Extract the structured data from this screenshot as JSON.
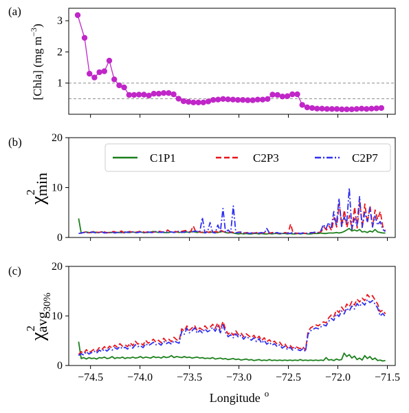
{
  "figure": {
    "xlabel": "Longitude",
    "xlabel_sup": "o",
    "x_ticks": [
      -74.5,
      -74.0,
      -73.5,
      -73.0,
      -72.5,
      -72.0,
      -71.5
    ],
    "x_tick_labels": [
      "−74.5",
      "−74.0",
      "−73.5",
      "−73.0",
      "−72.5",
      "−72.0",
      "−71.5"
    ],
    "xlim": [
      -74.72,
      -71.42
    ]
  },
  "chart_data": [
    {
      "type": "line",
      "panel": "(a)",
      "ylabel": "[Chla] (mg m",
      "ylabel_sup": "−3",
      "ylabel_close": ")",
      "ylim": [
        0,
        3.4
      ],
      "y_ticks": [
        1,
        2,
        3
      ],
      "reference_lines": [
        1.0,
        0.5
      ],
      "color": "#c026c8",
      "series": [
        {
          "x": [
            -74.63,
            -74.56,
            -74.51,
            -74.46,
            -74.41,
            -74.36,
            -74.31,
            -74.26,
            -74.21,
            -74.16,
            -74.11,
            -74.06,
            -74.01,
            -73.96,
            -73.91,
            -73.86,
            -73.81,
            -73.76,
            -73.71,
            -73.66,
            -73.61,
            -73.56,
            -73.51,
            -73.46,
            -73.41,
            -73.36,
            -73.31,
            -73.26,
            -73.21,
            -73.16,
            -73.11,
            -73.06,
            -73.01,
            -72.96,
            -72.91,
            -72.86,
            -72.81,
            -72.76,
            -72.71,
            -72.66,
            -72.61,
            -72.56,
            -72.51,
            -72.46,
            -72.41,
            -72.36,
            -72.31,
            -72.26,
            -72.21,
            -72.16,
            -72.11,
            -72.06,
            -72.01,
            -71.96,
            -71.91,
            -71.86,
            -71.81,
            -71.76,
            -71.71,
            -71.66,
            -71.61,
            -71.56
          ],
          "y": [
            3.18,
            2.45,
            1.3,
            1.18,
            1.35,
            1.38,
            1.72,
            1.12,
            0.93,
            0.86,
            0.62,
            0.62,
            0.63,
            0.63,
            0.6,
            0.66,
            0.66,
            0.68,
            0.68,
            0.64,
            0.5,
            0.42,
            0.4,
            0.38,
            0.38,
            0.38,
            0.41,
            0.46,
            0.47,
            0.49,
            0.48,
            0.47,
            0.46,
            0.46,
            0.45,
            0.45,
            0.47,
            0.47,
            0.49,
            0.63,
            0.62,
            0.57,
            0.58,
            0.64,
            0.64,
            0.3,
            0.22,
            0.2,
            0.18,
            0.18,
            0.17,
            0.17,
            0.17,
            0.16,
            0.16,
            0.16,
            0.17,
            0.18,
            0.17,
            0.18,
            0.19,
            0.2
          ]
        }
      ]
    },
    {
      "type": "line",
      "panel": "(b)",
      "ylabel_base": "χ",
      "ylabel_sup": "2",
      "ylabel_sub": "min",
      "ylim": [
        0,
        20
      ],
      "y_ticks": [
        0,
        10,
        20
      ],
      "legend": "top-right",
      "series": [
        {
          "name": "C1P1",
          "color": "#1a7f1a",
          "dash": "solid",
          "x_start": -74.62,
          "x_end": -71.52,
          "y": [
            3.8,
            0.9,
            1.0,
            1.1,
            1.0,
            1.0,
            1.1,
            1.0,
            1.0,
            1.1,
            1.0,
            1.0,
            1.0,
            1.0,
            1.1,
            1.0,
            1.0,
            1.0,
            1.1,
            1.0,
            1.0,
            1.1,
            1.0,
            1.0,
            1.1,
            1.0,
            1.0,
            1.0,
            1.1,
            1.2,
            1.1,
            1.0,
            1.1,
            1.0,
            1.0,
            1.0,
            1.1,
            1.0,
            1.1,
            1.0,
            1.1,
            1.0,
            1.1,
            1.0,
            1.2,
            1.1,
            1.0,
            1.1,
            1.0,
            1.0,
            1.1,
            1.0,
            1.1,
            1.0,
            1.0,
            1.1,
            1.2,
            1.0,
            0.9,
            1.0,
            0.9,
            0.8,
            0.7,
            0.8,
            0.7,
            0.8,
            0.7,
            0.7,
            0.8,
            0.8,
            0.7,
            0.8,
            0.7,
            0.7,
            0.8,
            0.7,
            0.8,
            0.8,
            0.7,
            0.8,
            0.8,
            0.7,
            0.8,
            0.7,
            0.7,
            0.8,
            0.7,
            0.8,
            0.8,
            0.7,
            0.7,
            0.8,
            0.8,
            0.8,
            0.9,
            0.8,
            0.8,
            0.9,
            0.9,
            0.9,
            1.0,
            0.9,
            1.0,
            1.2,
            1.5,
            1.8,
            1.3,
            1.5,
            1.3,
            1.6,
            1.1,
            1.2,
            1.0,
            1.3,
            1.1,
            1.6,
            1.1,
            1.0,
            0.9,
            0.9
          ]
        },
        {
          "name": "C2P3",
          "color": "#e8141c",
          "dash": "dashed",
          "x_start": -74.6,
          "x_end": -71.52,
          "y": [
            0.8,
            1.0,
            1.1,
            0.9,
            1.0,
            1.2,
            1.1,
            1.0,
            1.1,
            1.3,
            0.9,
            1.0,
            1.1,
            1.2,
            1.0,
            1.1,
            1.3,
            0.9,
            1.0,
            1.2,
            1.1,
            1.0,
            1.1,
            1.2,
            1.3,
            1.0,
            1.1,
            1.2,
            1.0,
            1.1,
            1.3,
            1.2,
            1.1,
            1.0,
            1.5,
            1.1,
            1.0,
            1.2,
            1.1,
            1.2,
            1.3,
            1.4,
            1.1,
            1.2,
            2.3,
            1.1,
            1.2,
            1.0,
            1.1,
            1.2,
            1.0,
            1.3,
            1.1,
            1.2,
            1.0,
            1.4,
            1.1,
            1.2,
            1.0,
            1.1,
            0.9,
            1.0,
            1.1,
            0.8,
            0.9,
            1.0,
            0.8,
            0.9,
            0.9,
            1.0,
            0.8,
            0.9,
            1.0,
            0.8,
            0.9,
            1.0,
            0.8,
            0.9,
            0.8,
            0.9,
            1.0,
            0.8,
            2.7,
            0.8,
            0.9,
            0.8,
            1.0,
            0.9,
            0.8,
            0.9,
            1.0,
            0.9,
            1.0,
            1.0,
            1.2,
            2.1,
            1.5,
            2.3,
            1.4,
            4.0,
            2.1,
            6.8,
            2.5,
            5.5,
            2.0,
            4.4,
            1.6,
            6.1,
            1.9,
            7.1,
            2.0,
            6.7,
            2.9,
            6.3,
            2.2,
            5.5,
            3.6,
            5.2,
            2.2,
            1.4
          ]
        },
        {
          "name": "C2P7",
          "color": "#2f2ff0",
          "dash": "dashdot",
          "x_start": -74.62,
          "x_end": -71.52,
          "y": [
            0.8,
            0.9,
            1.0,
            1.0,
            0.9,
            1.1,
            1.0,
            0.9,
            1.0,
            1.1,
            0.9,
            1.0,
            1.0,
            1.1,
            0.9,
            1.0,
            1.1,
            0.9,
            1.0,
            1.1,
            1.0,
            1.1,
            1.0,
            1.0,
            1.1,
            0.9,
            1.0,
            1.1,
            1.0,
            1.0,
            1.2,
            1.1,
            1.0,
            1.1,
            1.0,
            1.2,
            1.1,
            1.0,
            1.1,
            1.3,
            1.0,
            1.1,
            1.2,
            1.0,
            1.1,
            1.3,
            1.2,
            1.1,
            4.0,
            0.9,
            1.1,
            3.0,
            1.0,
            0.9,
            2.5,
            1.2,
            5.8,
            1.0,
            1.5,
            1.0,
            6.3,
            0.9,
            1.0,
            1.1,
            0.9,
            1.0,
            0.8,
            0.9,
            1.0,
            0.8,
            0.9,
            1.0,
            0.8,
            1.8,
            0.9,
            0.8,
            0.9,
            1.0,
            0.8,
            0.9,
            0.8,
            0.9,
            0.8,
            1.0,
            0.8,
            0.9,
            0.8,
            0.9,
            0.8,
            0.9,
            0.9,
            1.0,
            1.1,
            1.0,
            1.4,
            2.6,
            1.8,
            3.0,
            2.0,
            5.2,
            2.4,
            7.8,
            2.2,
            4.1,
            2.8,
            9.9,
            1.6,
            3.8,
            2.4,
            8.2,
            2.0,
            5.0,
            3.2,
            6.0,
            2.1,
            4.3,
            2.5,
            3.2,
            1.6,
            1.2
          ]
        }
      ]
    },
    {
      "type": "line",
      "panel": "(c)",
      "ylabel_base": "χ",
      "ylabel_sup": "2",
      "ylabel_sub": "avg",
      "ylabel_subsub": "30%",
      "ylim": [
        0,
        20
      ],
      "y_ticks": [
        0,
        10,
        20
      ],
      "series": [
        {
          "name": "C1P1",
          "color": "#1a7f1a",
          "dash": "solid",
          "x_start": -74.62,
          "x_end": -71.52,
          "y": [
            4.8,
            1.4,
            1.6,
            1.3,
            1.6,
            1.4,
            1.5,
            1.3,
            1.6,
            1.5,
            1.7,
            1.4,
            1.5,
            1.8,
            1.4,
            1.6,
            1.5,
            1.7,
            1.4,
            1.6,
            1.5,
            1.7,
            1.5,
            1.6,
            1.8,
            1.5,
            1.7,
            1.6,
            1.5,
            1.8,
            1.6,
            1.7,
            1.5,
            1.8,
            1.6,
            1.7,
            2.0,
            1.6,
            1.8,
            1.7,
            1.6,
            1.8,
            1.6,
            1.7,
            1.5,
            1.6,
            1.7,
            1.5,
            1.6,
            1.4,
            1.5,
            1.4,
            1.6,
            1.3,
            1.4,
            1.5,
            1.3,
            1.4,
            1.2,
            1.3,
            1.4,
            1.2,
            1.3,
            1.1,
            1.2,
            1.3,
            1.1,
            1.2,
            1.0,
            1.1,
            1.2,
            1.0,
            1.1,
            1.0,
            1.2,
            1.0,
            1.1,
            1.0,
            1.1,
            1.0,
            1.1,
            1.0,
            1.1,
            1.0,
            1.1,
            1.0,
            1.2,
            1.0,
            1.1,
            1.0,
            1.1,
            1.0,
            1.1,
            1.0,
            1.1,
            1.0,
            1.6,
            1.1,
            1.2,
            1.0,
            1.3,
            1.1,
            1.2,
            2.5,
            1.8,
            2.2,
            1.5,
            1.9,
            1.2,
            1.5,
            1.1,
            2.0,
            1.4,
            1.8,
            1.2,
            1.5,
            1.0,
            1.1,
            0.9,
            1.0
          ]
        },
        {
          "name": "C2P3",
          "color": "#e8141c",
          "dash": "dashed",
          "x_start": -74.62,
          "x_end": -71.52,
          "y": [
            2.2,
            2.8,
            2.4,
            3.2,
            2.6,
            2.9,
            3.3,
            2.9,
            3.6,
            3.2,
            3.8,
            3.3,
            3.9,
            3.5,
            4.1,
            3.7,
            4.4,
            3.9,
            4.2,
            3.8,
            4.6,
            4.0,
            4.9,
            4.3,
            4.6,
            4.1,
            5.1,
            4.5,
            4.8,
            5.3,
            4.7,
            5.1,
            4.6,
            5.5,
            4.9,
            5.3,
            4.8,
            5.7,
            5.2,
            5.0,
            7.4,
            6.9,
            8.0,
            7.1,
            7.6,
            8.1,
            7.0,
            7.6,
            7.2,
            8.0,
            7.4,
            7.7,
            8.3,
            7.5,
            8.6,
            7.2,
            8.9,
            7.3,
            6.3,
            6.8,
            6.1,
            7.0,
            6.2,
            6.6,
            5.8,
            6.4,
            6.0,
            5.6,
            6.1,
            5.3,
            5.9,
            5.0,
            5.6,
            4.8,
            5.2,
            4.6,
            4.9,
            4.3,
            4.7,
            4.0,
            4.4,
            3.6,
            4.1,
            3.5,
            3.9,
            3.6,
            3.4,
            3.8,
            3.1,
            6.8,
            7.6,
            7.9,
            8.2,
            8.0,
            8.4,
            8.8,
            8.6,
            9.6,
            10.2,
            9.8,
            11.2,
            10.7,
            11.8,
            11.1,
            12.4,
            11.8,
            12.9,
            12.2,
            13.4,
            12.8,
            13.6,
            13.1,
            14.3,
            13.7,
            14.1,
            13.2,
            12.4,
            10.8,
            11.2,
            10.4
          ]
        },
        {
          "name": "C2P7",
          "color": "#2f2ff0",
          "dash": "dashdot",
          "x_start": -74.62,
          "x_end": -71.52,
          "y": [
            2.0,
            2.4,
            2.1,
            2.8,
            2.3,
            2.6,
            2.9,
            2.5,
            3.1,
            2.8,
            3.3,
            2.9,
            3.4,
            3.1,
            3.6,
            3.3,
            3.8,
            3.4,
            3.7,
            3.3,
            4.0,
            3.5,
            4.2,
            3.8,
            4.0,
            3.6,
            4.4,
            4.0,
            4.3,
            4.7,
            4.2,
            4.5,
            4.1,
            4.9,
            4.4,
            4.7,
            4.3,
            5.0,
            4.7,
            4.5,
            6.9,
            6.3,
            7.5,
            6.6,
            7.0,
            7.6,
            6.5,
            7.1,
            6.6,
            7.4,
            6.8,
            7.1,
            7.7,
            6.9,
            7.9,
            6.6,
            8.2,
            6.7,
            5.8,
            6.2,
            5.6,
            6.4,
            5.7,
            6.1,
            5.3,
            5.9,
            5.5,
            5.1,
            5.6,
            4.8,
            5.4,
            4.5,
            5.1,
            4.3,
            4.7,
            4.1,
            4.4,
            3.8,
            4.2,
            3.5,
            3.9,
            3.2,
            3.7,
            3.1,
            3.5,
            3.2,
            3.0,
            3.4,
            2.8,
            6.3,
            7.0,
            7.3,
            7.6,
            7.4,
            7.8,
            8.2,
            8.0,
            8.9,
            9.5,
            9.1,
            10.4,
            9.9,
            11.0,
            10.4,
            11.6,
            11.0,
            12.0,
            11.4,
            12.5,
            11.9,
            12.7,
            12.2,
            13.3,
            12.7,
            13.1,
            12.4,
            11.6,
            10.0,
            10.5,
            9.8
          ]
        }
      ]
    }
  ]
}
